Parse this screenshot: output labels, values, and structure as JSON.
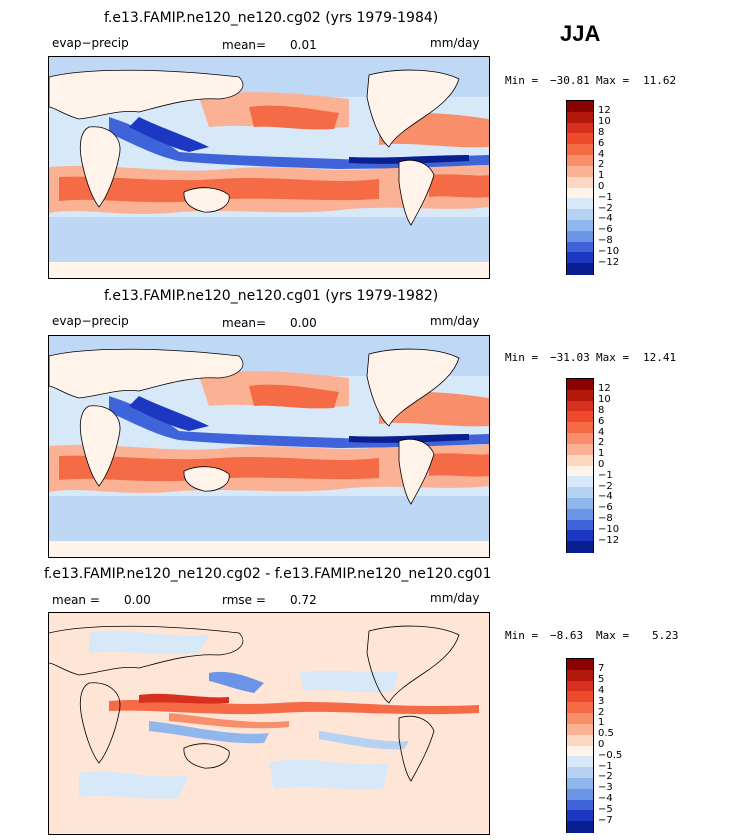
{
  "season": "JJA",
  "panels": [
    {
      "title": "f.e13.FAMIP.ne120_ne120.cg02 (yrs 1979-1984)",
      "left_label": "evap−precip",
      "mean_label": "mean=",
      "mean_value": "0.01",
      "units": "mm/day",
      "min_label": "Min =",
      "min_value": "−30.81",
      "max_label": "Max =",
      "max_value": "11.62"
    },
    {
      "title": "f.e13.FAMIP.ne120_ne120.cg01 (yrs 1979-1982)",
      "left_label": "evap−precip",
      "mean_label": "mean=",
      "mean_value": "0.00",
      "units": "mm/day",
      "min_label": "Min =",
      "min_value": "−31.03",
      "max_label": "Max =",
      "max_value": "12.41"
    },
    {
      "title": "f.e13.FAMIP.ne120_ne120.cg02 - f.e13.FAMIP.ne120_ne120.cg01",
      "left_label": "mean =",
      "mean_label": "",
      "mean_value": "0.00",
      "rmse_label": "rmse =",
      "rmse_value": "0.72",
      "units": "mm/day",
      "min_label": "Min =",
      "min_value": "−8.63",
      "max_label": "Max =",
      "max_value": "5.23"
    }
  ],
  "colorbars": {
    "abs": {
      "labels": [
        "12",
        "10",
        "8",
        "6",
        "4",
        "2",
        "1",
        "0",
        "−1",
        "−2",
        "−4",
        "−6",
        "−8",
        "−10",
        "−12"
      ],
      "colors": [
        "#8b0000",
        "#b2180a",
        "#d7301f",
        "#ee4a2b",
        "#f46b45",
        "#f88f6a",
        "#fbb294",
        "#fcd7c1",
        "#fff3ea",
        "#d7e8f9",
        "#b5d2f3",
        "#8fb6ed",
        "#6b93e6",
        "#3f64d9",
        "#1c38c2",
        "#0a1f8f"
      ]
    },
    "diff": {
      "labels": [
        "7",
        "5",
        "4",
        "3",
        "2",
        "1",
        "0.5",
        "0",
        "−0.5",
        "−1",
        "−2",
        "−3",
        "−4",
        "−5",
        "−7"
      ],
      "colors": [
        "#8b0000",
        "#b2180a",
        "#d7301f",
        "#ee4a2b",
        "#f46b45",
        "#f88f6a",
        "#fbb294",
        "#fcd7c1",
        "#fff3ea",
        "#d7e8f9",
        "#b5d2f3",
        "#8fb6ed",
        "#6b93e6",
        "#3f64d9",
        "#1c38c2",
        "#0a1f8f"
      ]
    }
  }
}
